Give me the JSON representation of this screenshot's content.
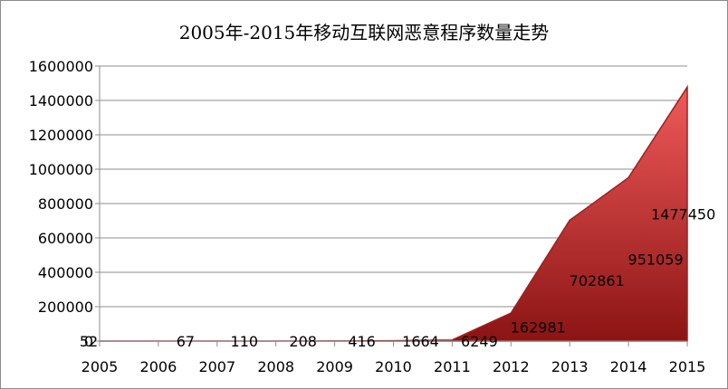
{
  "chart_data": {
    "type": "area",
    "title": "2005年-2015年移动互联网恶意程序数量走势",
    "categories": [
      "2005",
      "2006",
      "2007",
      "2008",
      "2009",
      "2010",
      "2011",
      "2012",
      "2013",
      "2014",
      "2015"
    ],
    "values": [
      52,
      67,
      110,
      208,
      416,
      1664,
      6249,
      162981,
      702861,
      951059,
      1477450
    ],
    "data_labels": [
      "52",
      "67",
      "110",
      "208",
      "416",
      "1664",
      "6249",
      "162981",
      "702861",
      "951059",
      "1477450"
    ],
    "y_ticks": [
      "0",
      "200000",
      "400000",
      "600000",
      "800000",
      "1000000",
      "1200000",
      "1400000",
      "1600000"
    ],
    "ylim": [
      0,
      1600000
    ],
    "xlabel": "",
    "ylabel": "",
    "grid": true,
    "legend": "none",
    "fill_color_light": "#f05a5a",
    "fill_color_dark": "#8c1414",
    "line_color": "#a01e1e"
  }
}
